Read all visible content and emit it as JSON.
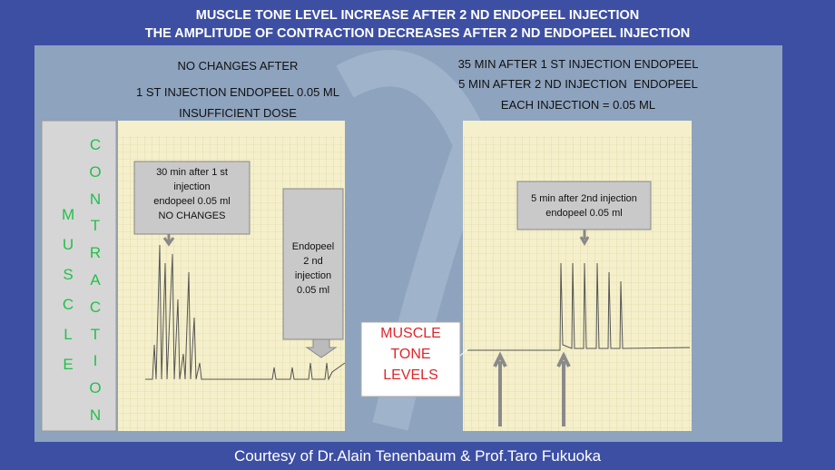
{
  "title": [
    "MUSCLE TONE LEVEL INCREASE AFTER 2 ND ENDOPEEL INJECTION",
    "THE AMPLITUDE OF CONTRACTION DECREASES AFTER 2 ND ENDOPEEL INJECTION"
  ],
  "left_caption": [
    "NO CHANGES AFTER",
    "1 ST INJECTION ENDOPEEL 0.05 ML",
    "INSUFFICIENT DOSE"
  ],
  "right_caption": [
    "35 MIN AFTER 1 ST INJECTION ENDOPEEL",
    "5 MIN AFTER 2 ND INJECTION  ENDOPEEL",
    "EACH INJECTION = 0.05 ML"
  ],
  "side_labels": [
    "MUSCLE",
    "CONTRACTION"
  ],
  "boxes": {
    "first_injection": [
      "30 min after 1 st",
      "injection",
      "endopeel 0.05 ml",
      "NO CHANGES"
    ],
    "second_injection": [
      "Endopeel",
      "2 nd",
      "injection",
      "0.05 ml"
    ],
    "tone_levels": [
      "MUSCLE",
      "TONE",
      "LEVELS"
    ],
    "after_second": [
      "5 min after 2nd injection",
      "endopeel 0.05 ml"
    ]
  },
  "footer": "Courtesy of Dr.Alain Tenenbaum & Prof.Taro Fukuoka"
}
